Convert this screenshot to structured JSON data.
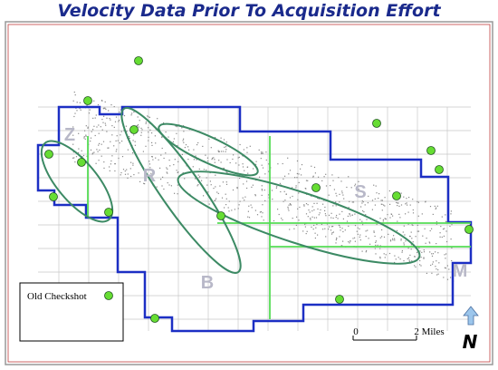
{
  "title": "Velocity Data Prior To Acquisition Effort",
  "legend": {
    "label": "Old Checkshot"
  },
  "scale_bar": {
    "start_label": "0",
    "end_label": "2 Miles"
  },
  "north_label": "N",
  "regions": [
    "Z",
    "R",
    "S",
    "B",
    "M"
  ]
}
